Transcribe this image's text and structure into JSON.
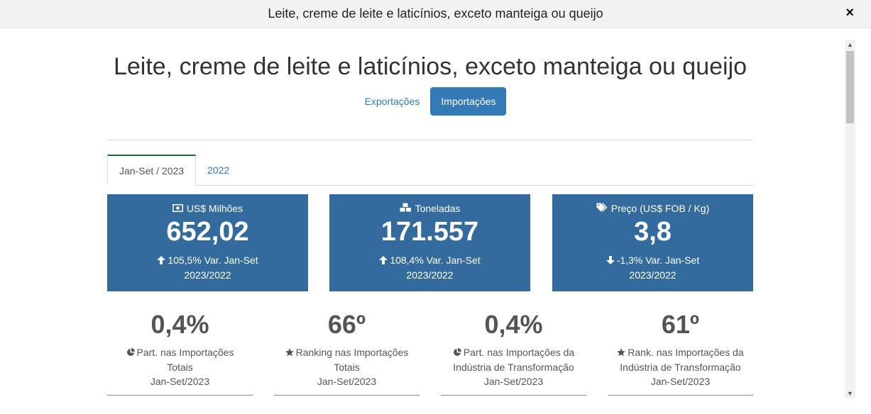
{
  "modal": {
    "title": "Leite, creme de leite e laticínios, exceto manteiga ou queijo",
    "close_label": "×"
  },
  "page": {
    "title": "Leite, creme de leite e laticínios, exceto manteiga ou queijo"
  },
  "flow_tabs": [
    {
      "label": "Exportações",
      "active": false
    },
    {
      "label": "Importações",
      "active": true
    }
  ],
  "period_tabs": [
    {
      "label": "Jan-Set / 2023",
      "active": true
    },
    {
      "label": "2022",
      "active": false
    }
  ],
  "stats": [
    {
      "icon": "money-icon",
      "label": "US$ Milhões",
      "value": "652,02",
      "arrow": "up",
      "var_line1": "105,5% Var. Jan-Set",
      "var_line2": "2023/2022"
    },
    {
      "icon": "cubes-icon",
      "label": "Toneladas",
      "value": "171.557",
      "arrow": "up",
      "var_line1": "108,4% Var. Jan-Set",
      "var_line2": "2023/2022"
    },
    {
      "icon": "tags-icon",
      "label": "Preço (US$ FOB / Kg)",
      "value": "3,8",
      "arrow": "down",
      "var_line1": "-1,3% Var. Jan-Set",
      "var_line2": "2023/2022"
    }
  ],
  "ranks": [
    {
      "icon": "pie-chart-icon",
      "value": "0,4%",
      "line1": "Part. nas Importações",
      "line2": "Totais",
      "line3": "Jan-Set/2023"
    },
    {
      "icon": "star-icon",
      "value": "66º",
      "line1": "Ranking nas Importações",
      "line2": "Totais",
      "line3": "Jan-Set/2023"
    },
    {
      "icon": "pie-chart-icon",
      "value": "0,4%",
      "line1": "Part. nas Importações da",
      "line2": "Indústria de Transformação",
      "line3": "Jan-Set/2023"
    },
    {
      "icon": "star-icon",
      "value": "61º",
      "line1": "Rank. nas Importações da",
      "line2": "Indústria de Transformação",
      "line3": "Jan-Set/2023"
    }
  ],
  "colors": {
    "primary": "#337ab7",
    "stat_bg": "#336b9e",
    "active_tab_border": "#1e6b3a"
  }
}
